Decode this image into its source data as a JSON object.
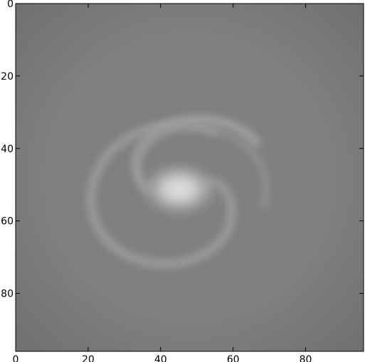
{
  "chart_data": {
    "type": "heatmap",
    "description_of_values": "grayscale intensity image; uniform mid-gray background with a brighter elliptical core and two faint spiral arms",
    "xlim": [
      0,
      96
    ],
    "ylim": [
      96,
      0
    ],
    "x_ticks": [
      0,
      20,
      40,
      60,
      80
    ],
    "y_ticks": [
      0,
      20,
      40,
      60,
      80
    ],
    "x_tick_labels": [
      "0",
      "20",
      "40",
      "60",
      "80"
    ],
    "y_tick_labels": [
      "0",
      "20",
      "40",
      "60",
      "80"
    ],
    "colormap": "gray",
    "background_level": 0.5,
    "core": {
      "center_x": 45,
      "center_y": 51,
      "peak_level": 0.85
    },
    "spiral_arm_level": 0.6,
    "grid": false,
    "title": "",
    "xlabel": "",
    "ylabel": ""
  },
  "colors": {
    "background": "#7f7f7f",
    "core": "#d9d9d9",
    "arm": "#9a9a9a",
    "axes": "#000000"
  }
}
